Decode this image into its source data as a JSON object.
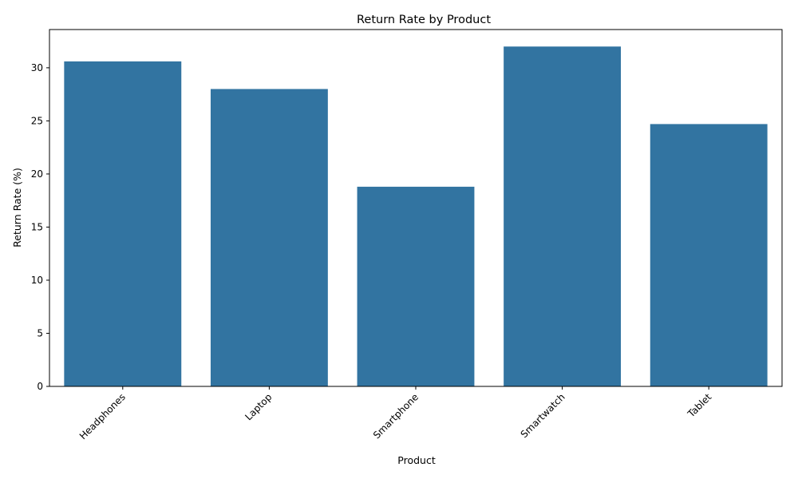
{
  "chart_data": {
    "type": "bar",
    "title": "Return Rate by Product",
    "xlabel": "Product",
    "ylabel": "Return Rate (%)",
    "categories": [
      "Headphones",
      "Laptop",
      "Smartphone",
      "Smartwatch",
      "Tablet"
    ],
    "values": [
      30.6,
      28.0,
      18.8,
      32.0,
      24.7
    ],
    "ylim": [
      0,
      33.6
    ],
    "yticks": [
      0,
      5,
      10,
      15,
      20,
      25,
      30
    ],
    "xtick_rotation_deg": 45,
    "grid": false,
    "legend": "none",
    "bar_color": "#3274a1"
  }
}
